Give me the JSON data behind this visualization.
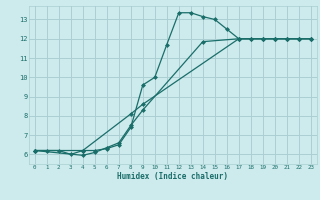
{
  "xlabel": "Humidex (Indice chaleur)",
  "bg_color": "#cdeaec",
  "grid_color": "#aacfd2",
  "line_color": "#1a6e6a",
  "xlim": [
    -0.5,
    23.5
  ],
  "ylim": [
    5.5,
    13.7
  ],
  "xticks": [
    0,
    1,
    2,
    3,
    4,
    5,
    6,
    7,
    8,
    9,
    10,
    11,
    12,
    13,
    14,
    15,
    16,
    17,
    18,
    19,
    20,
    21,
    22,
    23
  ],
  "yticks": [
    6,
    7,
    8,
    9,
    10,
    11,
    12,
    13
  ],
  "line1_x": [
    0,
    1,
    2,
    3,
    4,
    5,
    6,
    7,
    8,
    9,
    10,
    11,
    12,
    13,
    14,
    15,
    16,
    17,
    18,
    19,
    20,
    21,
    22,
    23
  ],
  "line1_y": [
    6.2,
    6.2,
    6.2,
    6.0,
    6.2,
    6.2,
    6.3,
    6.5,
    7.4,
    9.6,
    10.0,
    11.7,
    13.35,
    13.35,
    13.15,
    13.0,
    12.5,
    12.0,
    12.0,
    12.0,
    12.0,
    12.0,
    12.0,
    12.0
  ],
  "line2_x": [
    0,
    4,
    8,
    9,
    17,
    19,
    20,
    21,
    22,
    23
  ],
  "line2_y": [
    6.2,
    6.2,
    8.1,
    8.6,
    12.0,
    12.0,
    12.0,
    12.0,
    12.0,
    12.0
  ],
  "line3_x": [
    0,
    4,
    5,
    6,
    7,
    8,
    9,
    14,
    17,
    18,
    19,
    20,
    21,
    22,
    23
  ],
  "line3_y": [
    6.2,
    5.95,
    6.1,
    6.35,
    6.6,
    7.5,
    8.3,
    11.85,
    12.0,
    12.0,
    12.0,
    12.0,
    12.0,
    12.0,
    12.0
  ]
}
